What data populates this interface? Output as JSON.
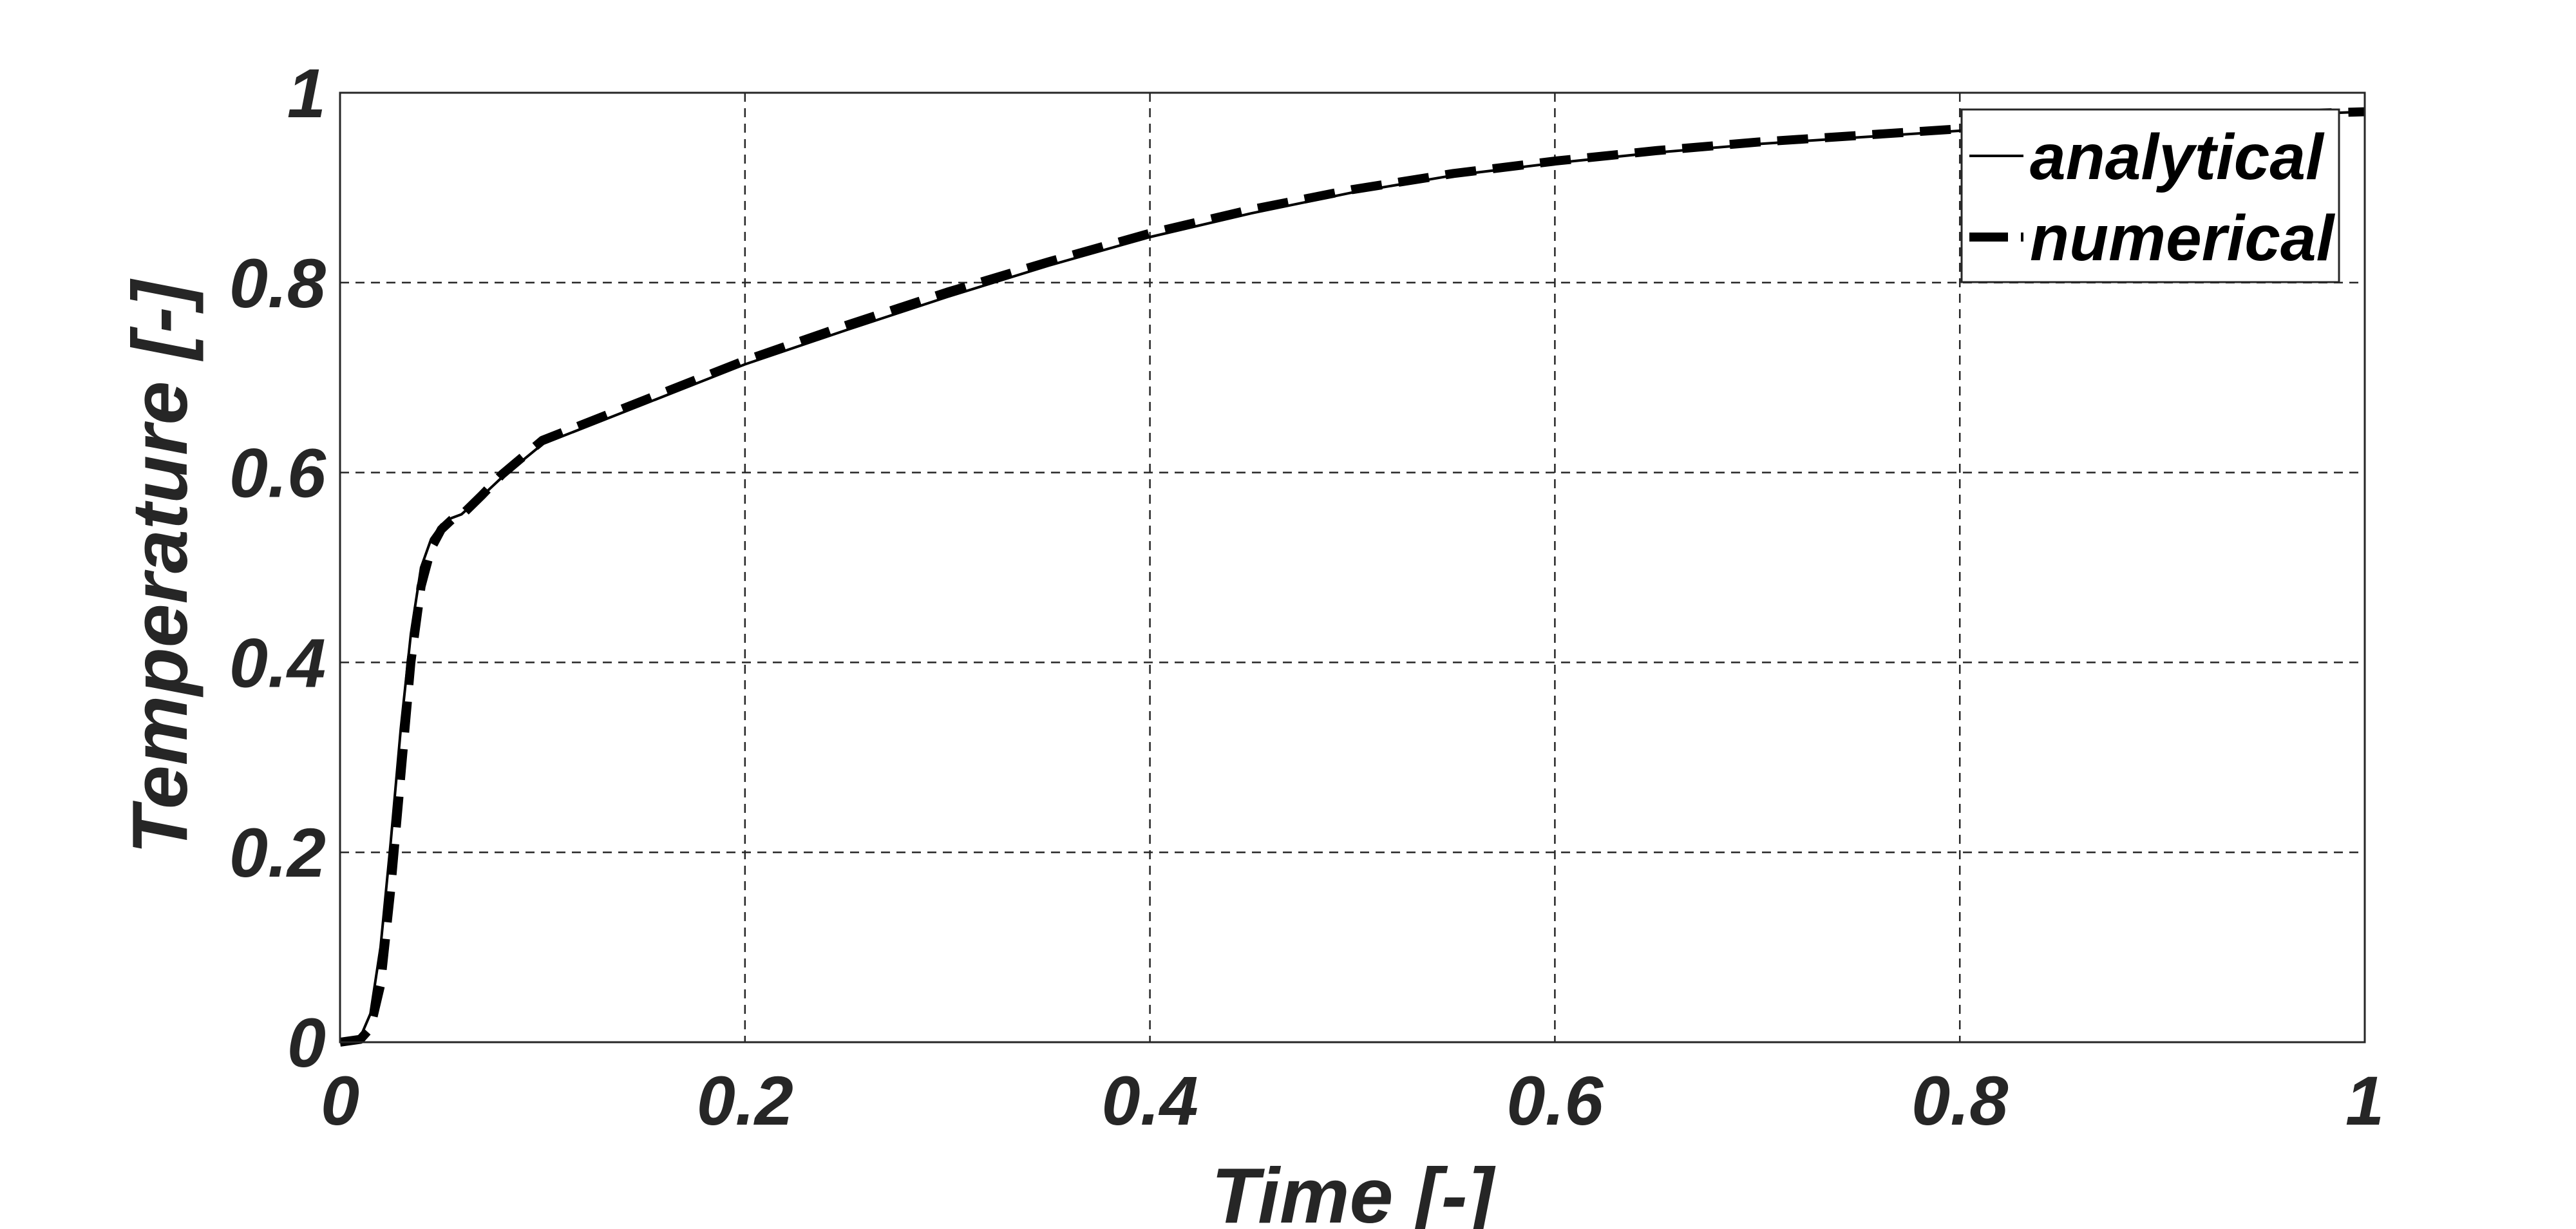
{
  "chart_data": {
    "type": "line",
    "title": "",
    "xlabel": "Time [-]",
    "ylabel": "Temperature [-]",
    "xlim": [
      0,
      1
    ],
    "ylim": [
      0,
      1
    ],
    "xticks": [
      0,
      0.2,
      0.4,
      0.6,
      0.8,
      1
    ],
    "yticks": [
      0,
      0.2,
      0.4,
      0.6,
      0.8,
      1
    ],
    "xtick_labels": [
      "0",
      "0.2",
      "0.4",
      "0.6",
      "0.8",
      "1"
    ],
    "ytick_labels": [
      "0",
      "0.2",
      "0.4",
      "0.6",
      "0.8",
      "1"
    ],
    "grid": true,
    "legend_position": "top-right",
    "series": [
      {
        "name": "analytical",
        "style": "solid-thin",
        "color": "#000000",
        "x": [
          0,
          0.01,
          0.015,
          0.02,
          0.025,
          0.03,
          0.035,
          0.04,
          0.045,
          0.05,
          0.055,
          0.06,
          0.07,
          0.08,
          0.1,
          0.15,
          0.2,
          0.25,
          0.3,
          0.35,
          0.4,
          0.45,
          0.5,
          0.55,
          0.6,
          0.65,
          0.7,
          0.75,
          0.8,
          0.85,
          0.9,
          0.95,
          1.0
        ],
        "y": [
          0,
          0.005,
          0.03,
          0.1,
          0.21,
          0.33,
          0.43,
          0.5,
          0.53,
          0.545,
          0.552,
          0.556,
          0.575,
          0.595,
          0.63,
          0.672,
          0.714,
          0.75,
          0.785,
          0.818,
          0.848,
          0.873,
          0.895,
          0.913,
          0.926,
          0.937,
          0.946,
          0.953,
          0.96,
          0.966,
          0.972,
          0.976,
          0.98
        ]
      },
      {
        "name": "numerical",
        "style": "dashed-thick",
        "color": "#000000",
        "x": [
          0,
          0.01,
          0.015,
          0.02,
          0.025,
          0.03,
          0.035,
          0.04,
          0.045,
          0.05,
          0.055,
          0.06,
          0.07,
          0.08,
          0.1,
          0.15,
          0.2,
          0.25,
          0.3,
          0.35,
          0.4,
          0.45,
          0.5,
          0.55,
          0.6,
          0.65,
          0.7,
          0.75,
          0.8,
          0.85,
          0.9,
          0.95,
          1.0
        ],
        "y": [
          0,
          0.003,
          0.015,
          0.06,
          0.16,
          0.28,
          0.4,
          0.48,
          0.52,
          0.54,
          0.55,
          0.555,
          0.576,
          0.598,
          0.634,
          0.676,
          0.718,
          0.755,
          0.79,
          0.822,
          0.852,
          0.877,
          0.898,
          0.915,
          0.928,
          0.939,
          0.948,
          0.955,
          0.962,
          0.968,
          0.973,
          0.977,
          0.98
        ]
      }
    ]
  }
}
